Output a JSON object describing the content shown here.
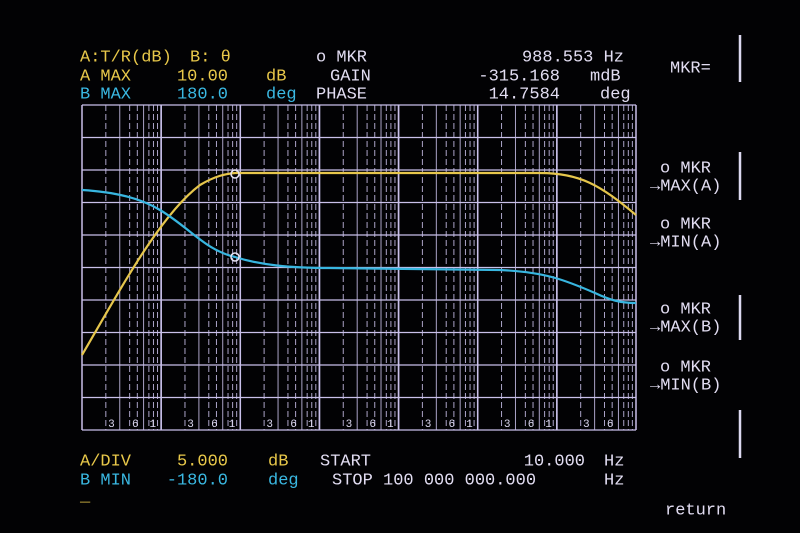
{
  "header": {
    "trace_a": "A:T/R(dB)",
    "trace_b": "B: θ",
    "marker": "o MKR",
    "marker_freq": "988.553 Hz",
    "a_max_label": "A MAX",
    "a_max_value": "10.00",
    "a_max_unit": "dB",
    "gain_label": "GAIN",
    "gain_value": "-315.168",
    "gain_unit": "mdB",
    "b_max_label": "B MAX",
    "b_max_value": "180.0",
    "b_max_unit": "deg",
    "phase_label": "PHASE",
    "phase_value": "14.7584",
    "phase_unit": "deg"
  },
  "grid_labels": [
    "3",
    "6",
    "1",
    "3",
    "6",
    "1",
    "3",
    "6",
    "1",
    "3",
    "6",
    "1",
    "3",
    "6",
    "1",
    "3",
    "6",
    "1",
    "3",
    "6"
  ],
  "footer": {
    "a_div_label": "A/DIV",
    "a_div_value": "5.000",
    "a_div_unit": "dB",
    "start_label": "START",
    "start_value": "10.000",
    "start_unit": "Hz",
    "b_min_label": "B MIN",
    "b_min_value": "-180.0",
    "b_min_unit": "deg",
    "stop_label": "STOP 100 000 000.000",
    "stop_unit": "Hz",
    "cursor": "_"
  },
  "softkeys": {
    "mkr_eq": "MKR=",
    "max_a": [
      "o MKR",
      "→MAX(A)"
    ],
    "min_a": [
      "o MKR",
      "→MIN(A)"
    ],
    "max_b": [
      "o MKR",
      "→MAX(B)"
    ],
    "min_b": [
      "o MKR",
      "→MIN(B)"
    ],
    "return": "return"
  }
}
